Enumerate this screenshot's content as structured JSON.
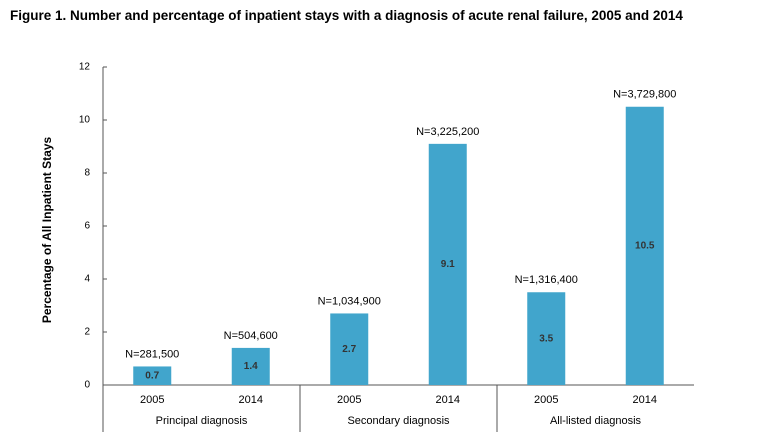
{
  "chart_data": {
    "type": "bar",
    "title": "Figure 1. Number and percentage of inpatient stays with a diagnosis of acute renal failure, 2005 and 2014",
    "y_label": "Percentage of All Inpatient Stays",
    "categories": [
      "2005",
      "2014",
      "2005",
      "2014",
      "2005",
      "2014"
    ],
    "groups": [
      "Principal diagnosis",
      "Secondary diagnosis",
      "All-listed diagnosis"
    ],
    "values": [
      0.7,
      1.4,
      2.7,
      9.1,
      3.5,
      10.5
    ],
    "annotations": [
      "N=281,500",
      "N=504,600",
      "N=1,034,900",
      "N=3,225,200",
      "N=1,316,400",
      "N=3,729,800"
    ],
    "color": "#41a5cc",
    "ylim": [
      0,
      12
    ],
    "yticks": [
      0,
      2,
      4,
      6,
      8,
      10,
      12
    ],
    "grid": false
  }
}
